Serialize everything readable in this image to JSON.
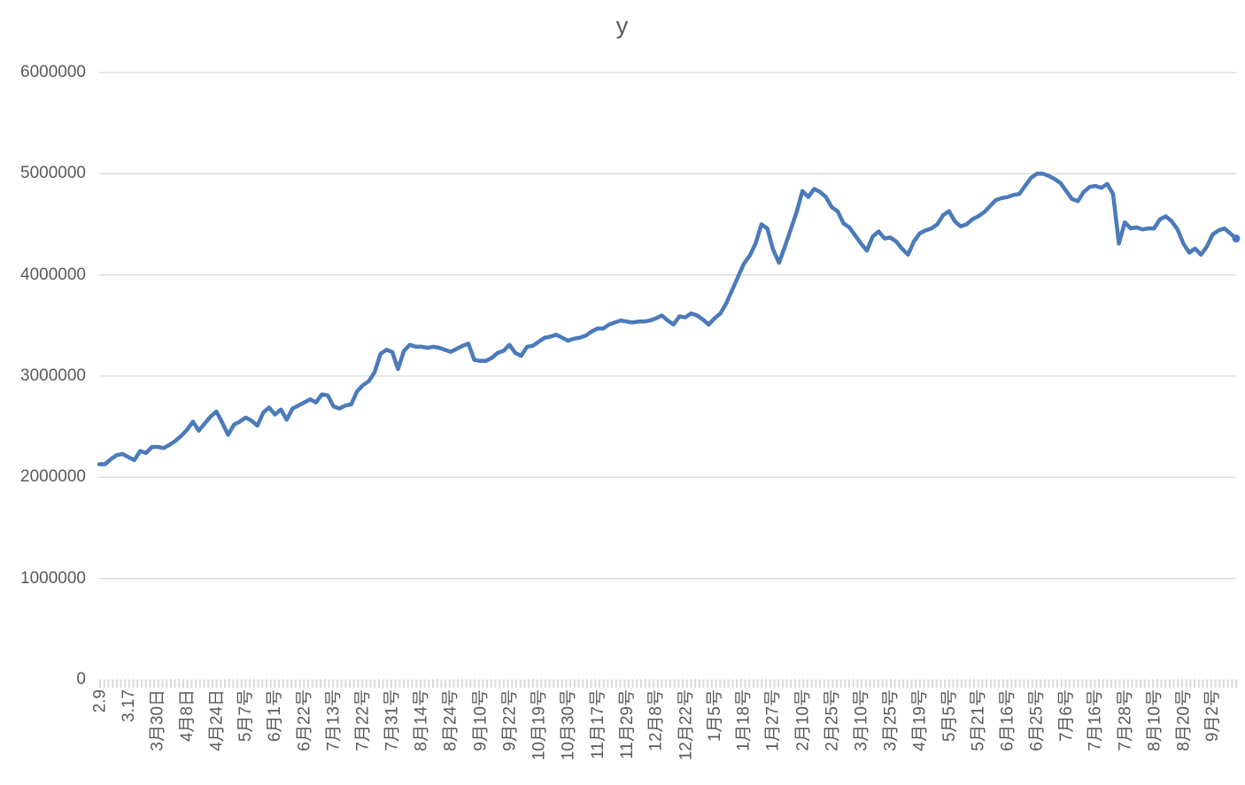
{
  "chart_data": {
    "type": "line",
    "title": "y",
    "legend": "none",
    "grid": "horizontal",
    "ylim": [
      0,
      6000000
    ],
    "y_ticks": [
      0,
      1000000,
      2000000,
      3000000,
      4000000,
      5000000,
      6000000
    ],
    "y_tick_labels": [
      "0",
      "1000000",
      "2000000",
      "3000000",
      "4000000",
      "5000000",
      "6000000"
    ],
    "x_tick_labels": [
      "2.9",
      "3.17",
      "3月30日",
      "4月8日",
      "4月24日",
      "5月7号",
      "6月1号",
      "6月22号",
      "7月13号",
      "7月22号",
      "7月31号",
      "8月14号",
      "8月24号",
      "9月10号",
      "9月22号",
      "10月19号",
      "10月30号",
      "11月17号",
      "11月29号",
      "12月8号",
      "12月22号",
      "1月5号",
      "1月18号",
      "1月27号",
      "2月10号",
      "2月25号",
      "3月10号",
      "3月25号",
      "4月19号",
      "5月5号",
      "5月21号",
      "6月16号",
      "6月25号",
      "7月6号",
      "7月16号",
      "7月28号",
      "8月10号",
      "8月20号",
      "9月2号"
    ],
    "x_label_every_n_points": 5,
    "series": [
      {
        "name": "y",
        "values": [
          2130000,
          2130000,
          2180000,
          2220000,
          2230000,
          2200000,
          2170000,
          2260000,
          2240000,
          2300000,
          2300000,
          2290000,
          2320000,
          2360000,
          2410000,
          2470000,
          2550000,
          2460000,
          2530000,
          2600000,
          2650000,
          2540000,
          2420000,
          2520000,
          2550000,
          2590000,
          2560000,
          2510000,
          2640000,
          2690000,
          2620000,
          2670000,
          2570000,
          2680000,
          2710000,
          2740000,
          2770000,
          2740000,
          2820000,
          2810000,
          2700000,
          2680000,
          2710000,
          2720000,
          2850000,
          2910000,
          2950000,
          3040000,
          3220000,
          3260000,
          3240000,
          3070000,
          3250000,
          3310000,
          3290000,
          3290000,
          3280000,
          3290000,
          3280000,
          3260000,
          3240000,
          3270000,
          3300000,
          3320000,
          3160000,
          3150000,
          3150000,
          3180000,
          3230000,
          3250000,
          3310000,
          3230000,
          3200000,
          3290000,
          3300000,
          3340000,
          3380000,
          3390000,
          3410000,
          3380000,
          3350000,
          3370000,
          3380000,
          3400000,
          3440000,
          3470000,
          3470000,
          3510000,
          3530000,
          3550000,
          3540000,
          3530000,
          3540000,
          3540000,
          3550000,
          3570000,
          3600000,
          3550000,
          3510000,
          3590000,
          3580000,
          3620000,
          3600000,
          3560000,
          3510000,
          3570000,
          3620000,
          3720000,
          3850000,
          3980000,
          4110000,
          4190000,
          4310000,
          4500000,
          4460000,
          4250000,
          4120000,
          4280000,
          4450000,
          4620000,
          4830000,
          4770000,
          4850000,
          4820000,
          4770000,
          4670000,
          4630000,
          4510000,
          4470000,
          4390000,
          4310000,
          4240000,
          4380000,
          4430000,
          4360000,
          4370000,
          4330000,
          4260000,
          4200000,
          4330000,
          4410000,
          4440000,
          4460000,
          4500000,
          4590000,
          4630000,
          4530000,
          4480000,
          4500000,
          4550000,
          4580000,
          4620000,
          4680000,
          4740000,
          4760000,
          4770000,
          4790000,
          4800000,
          4880000,
          4960000,
          5000000,
          5000000,
          4980000,
          4950000,
          4910000,
          4830000,
          4750000,
          4730000,
          4820000,
          4870000,
          4880000,
          4860000,
          4900000,
          4800000,
          4310000,
          4520000,
          4460000,
          4470000,
          4450000,
          4460000,
          4460000,
          4550000,
          4580000,
          4530000,
          4450000,
          4310000,
          4220000,
          4260000,
          4200000,
          4280000,
          4400000,
          4440000,
          4460000,
          4410000,
          4360000
        ]
      }
    ]
  },
  "colors": {
    "line": "#4A7ABA",
    "grid": "#D9D9D9",
    "tick_band": "#D9D9D9",
    "text": "#595959",
    "background": "#FFFFFF"
  }
}
